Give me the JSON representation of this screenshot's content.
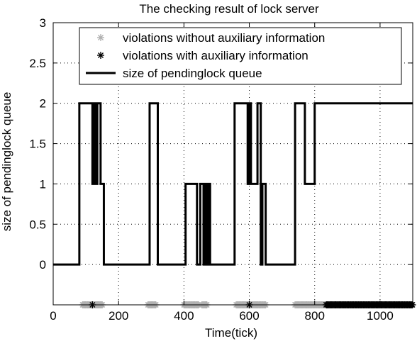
{
  "chart_data": {
    "type": "line",
    "title": "The checking result of lock server",
    "xlabel": "Time(tick)",
    "ylabel": "size of pendinglock queue",
    "xlim": [
      0,
      1100
    ],
    "ylim": [
      -0.5,
      3
    ],
    "x_ticks": [
      0,
      200,
      400,
      600,
      800,
      1000
    ],
    "y_ticks": [
      0,
      0.5,
      1,
      1.5,
      2,
      2.5,
      3
    ],
    "x_tick_labels": [
      "0",
      "200",
      "400",
      "600",
      "800",
      "1000"
    ],
    "y_tick_labels": [
      "0",
      "0.5",
      "1",
      "1.5",
      "2",
      "2.5",
      "3"
    ],
    "grid": "dotted",
    "legend_position": "top-right",
    "legend": [
      {
        "label": "violations without auxiliary information",
        "marker": "asterisk",
        "color": "#b0b0b0"
      },
      {
        "label": "violations with auxiliary information",
        "marker": "asterisk",
        "color": "#000000"
      },
      {
        "label": "size of pendinglock queue",
        "marker": "line",
        "color": "#000000"
      }
    ],
    "series": [
      {
        "name": "size of pendinglock queue",
        "style": "step",
        "x": [
          0,
          80,
          120,
          125,
          130,
          135,
          145,
          155,
          295,
          320,
          405,
          440,
          450,
          460,
          465,
          470,
          475,
          480,
          555,
          595,
          600,
          605,
          625,
          635,
          640,
          650,
          740,
          770,
          800,
          1100
        ],
        "y": [
          0,
          2,
          1,
          2,
          1,
          2,
          1,
          0,
          2,
          0,
          1,
          0,
          1,
          0,
          1,
          0,
          1,
          0,
          2,
          1,
          2,
          1,
          2,
          0,
          1,
          0,
          2,
          1,
          2,
          2
        ]
      },
      {
        "name": "violations without auxiliary information",
        "y": -0.5,
        "x_ranges": [
          [
            90,
            150
          ],
          [
            290,
            315
          ],
          [
            400,
            445
          ],
          [
            455,
            470
          ],
          [
            560,
            650
          ],
          [
            740,
            830
          ]
        ]
      },
      {
        "name": "violations with auxiliary information",
        "y": -0.5,
        "x_points": [
          120,
          600
        ],
        "x_ranges": [
          [
            835,
            1100
          ]
        ]
      }
    ]
  }
}
